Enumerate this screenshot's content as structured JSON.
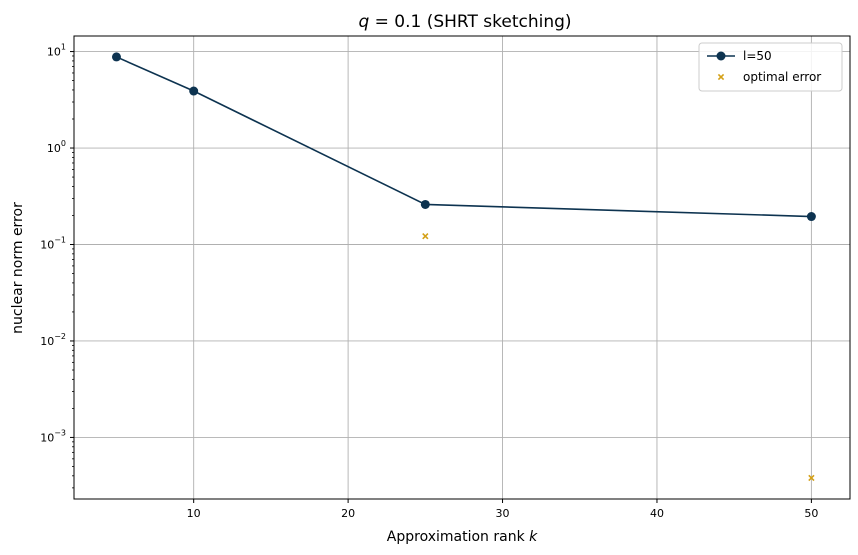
{
  "chart_data": {
    "type": "line",
    "title_var": "q",
    "title_rest": " = 0.1 (SHRT sketching)",
    "xlabel_text": "Approximation rank ",
    "xlabel_var": "k",
    "ylabel": "nuclear norm error",
    "x_ticks": [
      10,
      20,
      30,
      40,
      50
    ],
    "y_ticks": [
      {
        "exp": -3,
        "label_base": "10",
        "label_exp": "−3"
      },
      {
        "exp": -2,
        "label_base": "10",
        "label_exp": "−2"
      },
      {
        "exp": -1,
        "label_base": "10",
        "label_exp": "−1"
      },
      {
        "exp": 0,
        "label_base": "10",
        "label_exp": "0"
      },
      {
        "exp": 1,
        "label_base": "10",
        "label_exp": "1"
      }
    ],
    "xlim": [
      2.25,
      52.5
    ],
    "ylim": [
      0.00023,
      14.5
    ],
    "y_scale": "log",
    "grid": true,
    "legend_position": "top-right",
    "series": [
      {
        "name": "l=50",
        "kind": "line-marker",
        "color": "#0d3350",
        "x": [
          5,
          10,
          25,
          50
        ],
        "y": [
          8.8,
          3.9,
          0.26,
          0.195
        ]
      },
      {
        "name": "optimal error",
        "kind": "scatter-x",
        "color": "#d4a017",
        "x": [
          25,
          50
        ],
        "y": [
          0.122,
          0.00038
        ]
      }
    ]
  }
}
